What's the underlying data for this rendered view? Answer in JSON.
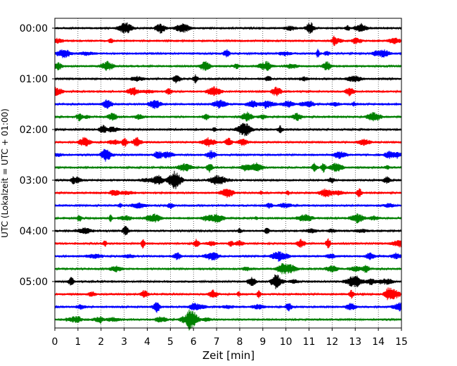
{
  "chart_data": {
    "type": "line",
    "xlabel": "Zeit  [min]",
    "ylabel": "UTC (Lokalzeit = UTC + 01:00)",
    "xlim": [
      0,
      15
    ],
    "x_ticks": [
      "0",
      "1",
      "2",
      "3",
      "4",
      "5",
      "6",
      "7",
      "8",
      "9",
      "10",
      "11",
      "12",
      "13",
      "14",
      "15"
    ],
    "y_ticks": [
      "00:00",
      "01:00",
      "02:00",
      "03:00",
      "04:00",
      "05:00"
    ],
    "grid_x": true,
    "trace_colors": [
      "#000000",
      "#ff0000",
      "#0000ff",
      "#008000"
    ],
    "trace_interval_minutes": 15,
    "trace_count": 24,
    "first_trace": "00:00"
  }
}
